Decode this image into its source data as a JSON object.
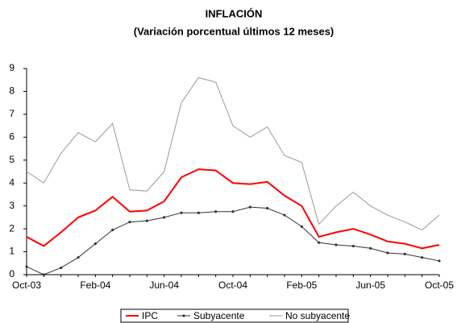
{
  "chart_data": {
    "type": "line",
    "title": "INFLACIÓN",
    "subtitle": "(Variación porcentual últimos 12 meses)",
    "categories": [
      "Oct-03",
      null,
      null,
      null,
      "Feb-04",
      null,
      null,
      null,
      "Jun-04",
      null,
      null,
      null,
      "Oct-04",
      null,
      null,
      null,
      "Feb-05",
      null,
      null,
      null,
      "Jun-05",
      null,
      null,
      null,
      "Oct-05"
    ],
    "series": [
      {
        "name": "IPC",
        "color": "#ff0000",
        "values": [
          1.65,
          1.25,
          1.85,
          2.5,
          2.8,
          3.4,
          2.75,
          2.8,
          3.2,
          4.25,
          4.6,
          4.55,
          4.0,
          3.95,
          4.05,
          3.45,
          3.0,
          1.65,
          1.85,
          2.0,
          1.75,
          1.45,
          1.35,
          1.15,
          1.3
        ]
      },
      {
        "name": "Subyacente",
        "color": "#333333",
        "values": [
          0.35,
          0,
          0.3,
          0.75,
          1.35,
          1.95,
          2.3,
          2.35,
          2.5,
          2.7,
          2.7,
          2.75,
          2.75,
          2.95,
          2.9,
          2.6,
          2.1,
          1.4,
          1.3,
          1.25,
          1.15,
          0.95,
          0.9,
          0.75,
          0.6
        ]
      },
      {
        "name": "No subyacente",
        "color": "#999999",
        "values": [
          4.5,
          4.0,
          5.3,
          6.2,
          5.8,
          6.6,
          3.7,
          3.65,
          4.5,
          7.5,
          8.6,
          8.4,
          6.5,
          6.0,
          6.45,
          5.2,
          4.9,
          2.2,
          3.0,
          3.6,
          3.0,
          2.6,
          2.3,
          1.95,
          2.6
        ]
      }
    ],
    "ylim": [
      0,
      9
    ],
    "yticks": [
      0,
      1,
      2,
      3,
      4,
      5,
      6,
      7,
      8,
      9
    ],
    "legend": "bottom"
  }
}
